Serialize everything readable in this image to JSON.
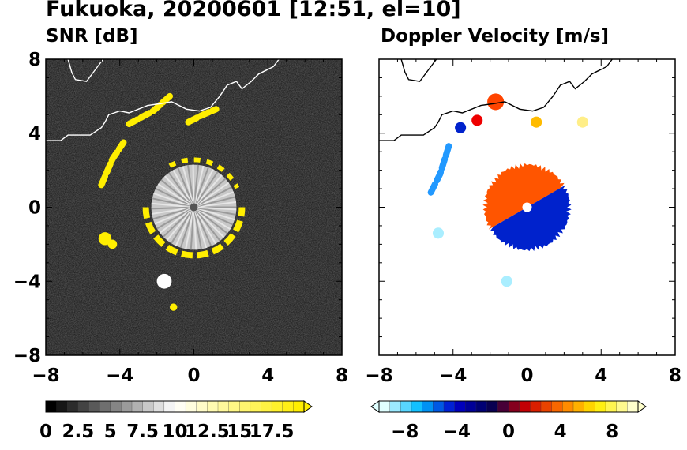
{
  "title": "Fukuoka, 20200601 [12:51, el=10]",
  "chart_data": [
    {
      "type": "heatmap",
      "title": "SNR [dB]",
      "xlim": [
        -8,
        8
      ],
      "ylim": [
        -8,
        8
      ],
      "xticks": [
        -8,
        -4,
        0,
        4,
        8
      ],
      "yticks": [
        -8,
        -4,
        0,
        4,
        8
      ],
      "xtick_labels": [
        "−8",
        "−4",
        "0",
        "4",
        "8"
      ],
      "ytick_labels": [
        "−8",
        "−4",
        "0",
        "4",
        "8"
      ],
      "background": "#111111",
      "colorbar": {
        "range": [
          0,
          20
        ],
        "ticks": [
          0,
          2.5,
          5,
          7.5,
          10,
          12.5,
          15,
          17.5
        ],
        "labels": [
          "0",
          "2.5",
          "5",
          "7.5",
          "10",
          "12.5",
          "15",
          "17.5"
        ],
        "extend": "max",
        "colors": [
          "#000000",
          "#ffffff",
          "#ffee00"
        ]
      },
      "echoes": [
        {
          "kind": "core",
          "x": 0,
          "y": 0,
          "r": 2.3,
          "color": "#c8c8c8"
        },
        {
          "kind": "ring",
          "x": 0,
          "y": 0,
          "r": 2.6,
          "color": "#ffee00"
        },
        {
          "kind": "band",
          "x": [
            -5.0,
            -4.4,
            -3.8
          ],
          "y": [
            1.2,
            2.6,
            3.5
          ],
          "color": "#ffee00"
        },
        {
          "kind": "band",
          "x": [
            -3.5,
            -2.2,
            -1.3
          ],
          "y": [
            4.5,
            5.2,
            6.0
          ],
          "color": "#ffee00"
        },
        {
          "kind": "band",
          "x": [
            -0.3,
            0.5,
            1.2
          ],
          "y": [
            4.6,
            5.0,
            5.3
          ],
          "color": "#ffee00"
        },
        {
          "kind": "patch",
          "x": -4.8,
          "y": -1.7,
          "r": 0.35,
          "color": "#ffee00"
        },
        {
          "kind": "patch",
          "x": -4.4,
          "y": -2.0,
          "r": 0.25,
          "color": "#ffee00"
        },
        {
          "kind": "patch",
          "x": -1.6,
          "y": -4.0,
          "r": 0.4,
          "color": "#ffffff"
        },
        {
          "kind": "patch",
          "x": -1.1,
          "y": -5.4,
          "r": 0.2,
          "color": "#ffee00"
        }
      ]
    },
    {
      "type": "heatmap",
      "title": "Doppler Velocity [m/s]",
      "xlim": [
        -8,
        8
      ],
      "ylim": [
        -8,
        8
      ],
      "xticks": [
        -8,
        -4,
        0,
        4,
        8
      ],
      "yticks": [
        -8,
        -4,
        0,
        4,
        8
      ],
      "xtick_labels": [
        "−8",
        "−4",
        "0",
        "4",
        "8"
      ],
      "ytick_labels": [
        "−8",
        "−4",
        "0",
        "4",
        "8"
      ],
      "background": "#ffffff",
      "colorbar": {
        "range": [
          -10,
          10
        ],
        "ticks": [
          -8,
          -4,
          0,
          4,
          8
        ],
        "labels": [
          "−8",
          "−4",
          "0",
          "4",
          "8"
        ],
        "extend": "both",
        "colors": [
          "#e0ffff",
          "#00bbff",
          "#0000cc",
          "#000055",
          "#cc0000",
          "#ff7700",
          "#ffee00",
          "#ffffcc"
        ]
      },
      "echoes": [
        {
          "kind": "half",
          "x": 0,
          "y": 0,
          "r": 2.4,
          "angle": [
            30,
            210
          ],
          "color": "#ff5500"
        },
        {
          "kind": "half",
          "x": 0,
          "y": 0,
          "r": 2.4,
          "angle": [
            210,
            390
          ],
          "color": "#0022cc"
        },
        {
          "kind": "band",
          "x": [
            -5.2,
            -4.7,
            -4.2
          ],
          "y": [
            0.8,
            1.8,
            3.4
          ],
          "color": "#2299ff"
        },
        {
          "kind": "patch",
          "x": -3.6,
          "y": 4.3,
          "r": 0.3,
          "color": "#0022cc"
        },
        {
          "kind": "patch",
          "x": -2.7,
          "y": 4.7,
          "r": 0.3,
          "color": "#ee0000"
        },
        {
          "kind": "patch",
          "x": -1.7,
          "y": 5.7,
          "r": 0.45,
          "color": "#ff4400"
        },
        {
          "kind": "patch",
          "x": 0.5,
          "y": 4.6,
          "r": 0.3,
          "color": "#ffbb00"
        },
        {
          "kind": "patch",
          "x": 3.0,
          "y": 4.6,
          "r": 0.3,
          "color": "#ffee88"
        },
        {
          "kind": "patch",
          "x": -4.8,
          "y": -1.4,
          "r": 0.3,
          "color": "#aaeeff"
        },
        {
          "kind": "patch",
          "x": -1.1,
          "y": -4.0,
          "r": 0.3,
          "color": "#aaeeff"
        }
      ]
    }
  ]
}
